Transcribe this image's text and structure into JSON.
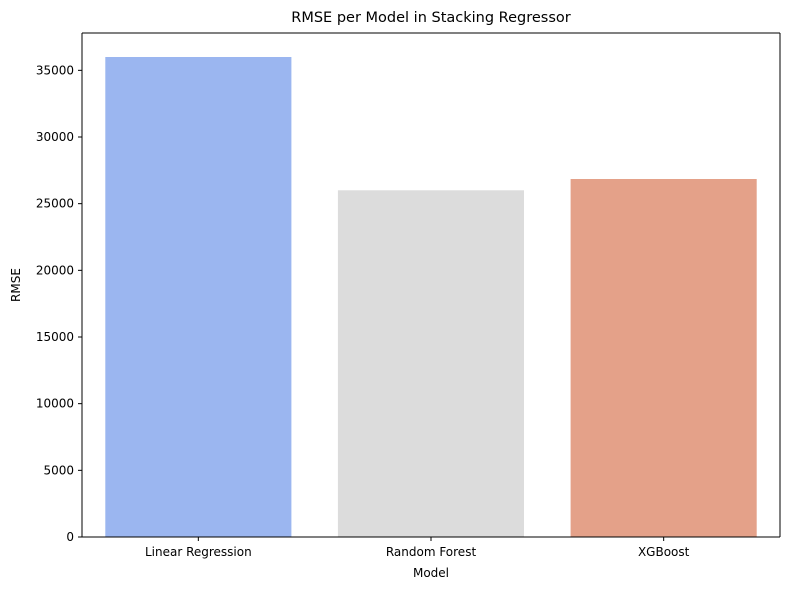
{
  "chart_data": {
    "type": "bar",
    "title": "RMSE per Model in Stacking Regressor",
    "xlabel": "Model",
    "ylabel": "RMSE",
    "categories": [
      "Linear Regression",
      "Random Forest",
      "XGBoost"
    ],
    "values": [
      36000,
      26000,
      26850
    ],
    "colors": [
      "#9bb6f0",
      "#dcdcdc",
      "#e4a189"
    ],
    "ylim": [
      0,
      37800
    ],
    "yticks": [
      0,
      5000,
      10000,
      15000,
      20000,
      25000,
      30000,
      35000
    ],
    "grid": false,
    "legend": "none"
  }
}
